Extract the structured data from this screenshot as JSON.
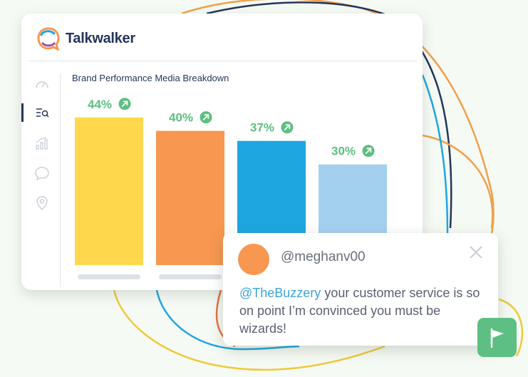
{
  "app": {
    "brand_name": "Talkwalker"
  },
  "sidebar": {
    "items": [
      {
        "icon": "dashboard-gauge-icon"
      },
      {
        "icon": "search-list-icon",
        "active": true
      },
      {
        "icon": "analytics-chart-icon"
      },
      {
        "icon": "chat-bubble-icon"
      },
      {
        "icon": "location-pin-icon"
      }
    ]
  },
  "chart": {
    "title": "Brand Performance Media Breakdown"
  },
  "chart_data": {
    "type": "bar",
    "title": "Brand Performance Media Breakdown",
    "categories": [
      "",
      "",
      "",
      ""
    ],
    "values": [
      44,
      40,
      37,
      30
    ],
    "value_labels": [
      "44%",
      "40%",
      "37%",
      "30%"
    ],
    "colors": [
      "#ffd84d",
      "#f79750",
      "#1ea6e0",
      "#a4d0f0"
    ],
    "trend_icon": "arrow-up-right-icon",
    "trend_color": "#5dbf81",
    "xlabel": "",
    "ylabel": ""
  },
  "post": {
    "handle": "@meghanv00",
    "mention": "@TheBuzzery",
    "text": " your customer service is so on point I’m convinced you must be wizards!"
  },
  "flag_button": {
    "icon": "flag-icon"
  },
  "colors": {
    "navy": "#25355c",
    "green": "#5dbf81",
    "orange": "#f79750",
    "yellow": "#ffd84d",
    "blue": "#1ea6e0",
    "light_blue": "#a4d0f0"
  }
}
